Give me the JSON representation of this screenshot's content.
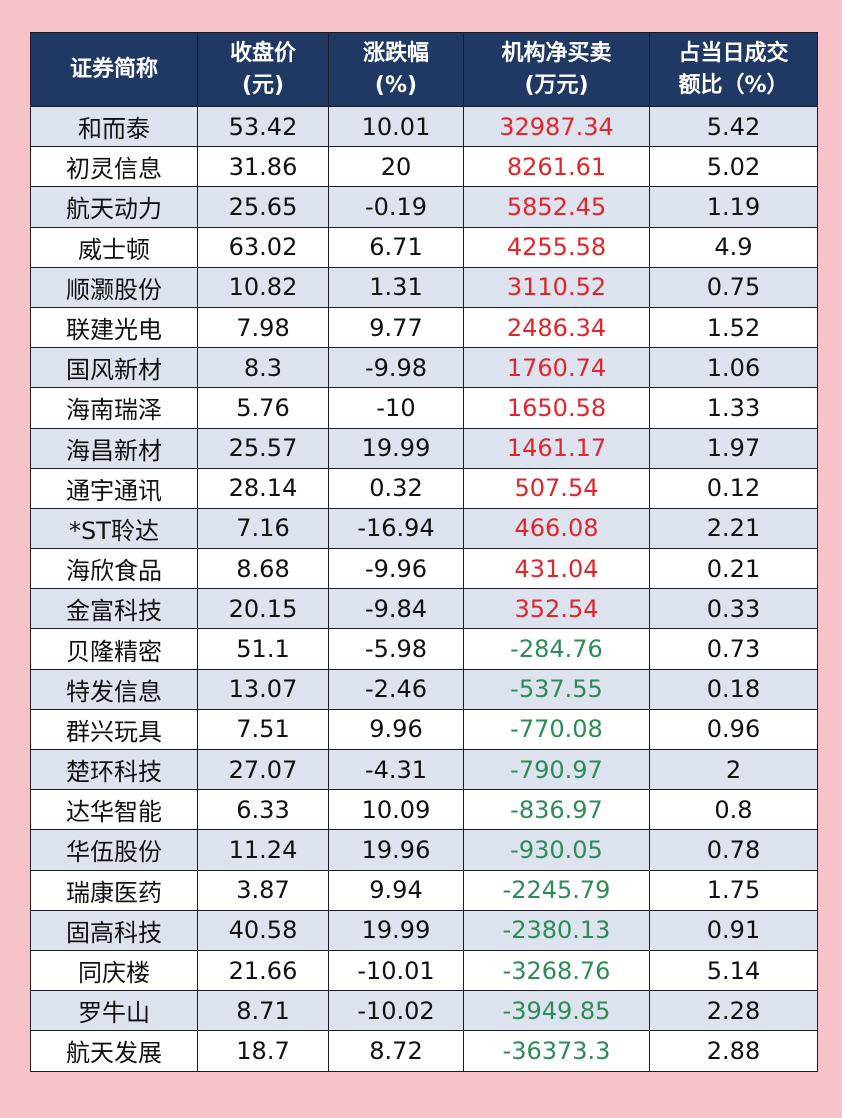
{
  "headers": [
    "证券简称",
    "收盘价\n(元)",
    "涨跌幅\n(%)",
    "机构净买卖\n(万元)",
    "占当日成交\n额比（%）"
  ],
  "header_lines": [
    [
      "证券简称"
    ],
    [
      "收盘价",
      "(元)"
    ],
    [
      "涨跌幅",
      "(%)"
    ],
    [
      "机构净买卖",
      "(万元)"
    ],
    [
      "占当日成交",
      "额比（%）"
    ]
  ],
  "colors": {
    "background": "#f7c3c8",
    "header": "#1f3864",
    "shaded_row": "#dce3ee",
    "positive": "#e0262b",
    "negative": "#2e8b57"
  },
  "rows": [
    [
      "和而泰",
      "53.42",
      "10.01",
      "32987.34",
      "5.42"
    ],
    [
      "初灵信息",
      "31.86",
      "20",
      "8261.61",
      "5.02"
    ],
    [
      "航天动力",
      "25.65",
      "-0.19",
      "5852.45",
      "1.19"
    ],
    [
      "威士顿",
      "63.02",
      "6.71",
      "4255.58",
      "4.9"
    ],
    [
      "顺灏股份",
      "10.82",
      "1.31",
      "3110.52",
      "0.75"
    ],
    [
      "联建光电",
      "7.98",
      "9.77",
      "2486.34",
      "1.52"
    ],
    [
      "国风新材",
      "8.3",
      "-9.98",
      "1760.74",
      "1.06"
    ],
    [
      "海南瑞泽",
      "5.76",
      "-10",
      "1650.58",
      "1.33"
    ],
    [
      "海昌新材",
      "25.57",
      "19.99",
      "1461.17",
      "1.97"
    ],
    [
      "通宇通讯",
      "28.14",
      "0.32",
      "507.54",
      "0.12"
    ],
    [
      "*ST聆达",
      "7.16",
      "-16.94",
      "466.08",
      "2.21"
    ],
    [
      "海欣食品",
      "8.68",
      "-9.96",
      "431.04",
      "0.21"
    ],
    [
      "金富科技",
      "20.15",
      "-9.84",
      "352.54",
      "0.33"
    ],
    [
      "贝隆精密",
      "51.1",
      "-5.98",
      "-284.76",
      "0.73"
    ],
    [
      "特发信息",
      "13.07",
      "-2.46",
      "-537.55",
      "0.18"
    ],
    [
      "群兴玩具",
      "7.51",
      "9.96",
      "-770.08",
      "0.96"
    ],
    [
      "楚环科技",
      "27.07",
      "-4.31",
      "-790.97",
      "2"
    ],
    [
      "达华智能",
      "6.33",
      "10.09",
      "-836.97",
      "0.8"
    ],
    [
      "华伍股份",
      "11.24",
      "19.96",
      "-930.05",
      "0.78"
    ],
    [
      "瑞康医药",
      "3.87",
      "9.94",
      "-2245.79",
      "1.75"
    ],
    [
      "固高科技",
      "40.58",
      "19.99",
      "-2380.13",
      "0.91"
    ],
    [
      "同庆楼",
      "21.66",
      "-10.01",
      "-3268.76",
      "5.14"
    ],
    [
      "罗牛山",
      "8.71",
      "-10.02",
      "-3949.85",
      "2.28"
    ],
    [
      "航天发展",
      "18.7",
      "8.72",
      "-36373.3",
      "2.88"
    ]
  ]
}
